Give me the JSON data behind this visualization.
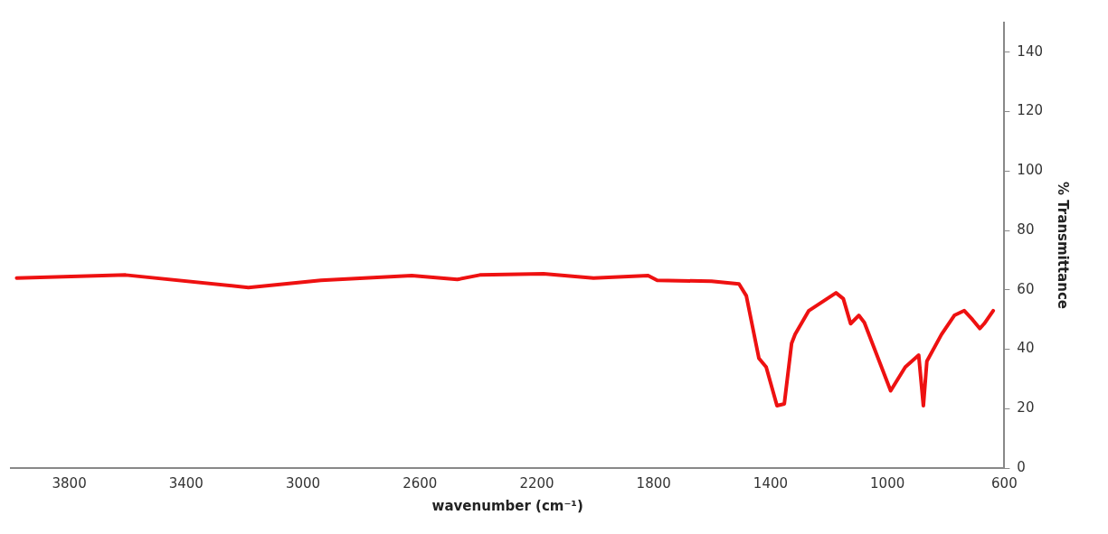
{
  "chart_data": {
    "type": "line",
    "xlabel": "wavenumber (cm⁻¹)",
    "ylabel": "% Transmittance",
    "x": [
      3980,
      3607,
      3187,
      2939,
      2628,
      2472,
      2395,
      2177,
      2006,
      1819,
      1788,
      1602,
      1508,
      1483,
      1440,
      1415,
      1378,
      1353,
      1328,
      1316,
      1269,
      1176,
      1151,
      1126,
      1098,
      1079,
      989,
      939,
      893,
      877,
      865,
      815,
      771,
      737,
      709,
      684,
      669,
      638
    ],
    "series": [
      {
        "color": "#ee1111",
        "values": [
          64,
          65,
          60.8,
          63.2,
          64.8,
          63.5,
          65,
          65.4,
          64,
          64.8,
          63.2,
          62.9,
          62,
          58,
          37,
          34,
          21,
          21.6,
          42,
          45,
          53,
          59,
          57,
          48.6,
          51.4,
          49,
          26,
          34,
          38,
          21,
          36,
          45,
          51.4,
          53,
          50,
          47,
          48.6,
          53
        ]
      }
    ],
    "xlim": [
      4000,
      600
    ],
    "xticks": [
      3800,
      3400,
      3000,
      2600,
      2200,
      1800,
      1400,
      1000,
      600
    ],
    "ylim": [
      0,
      150
    ],
    "yticks": [
      0,
      20,
      40,
      60,
      80,
      100,
      120,
      140
    ],
    "grid": false,
    "legend": false,
    "marker": "none",
    "line_style": "solid"
  }
}
